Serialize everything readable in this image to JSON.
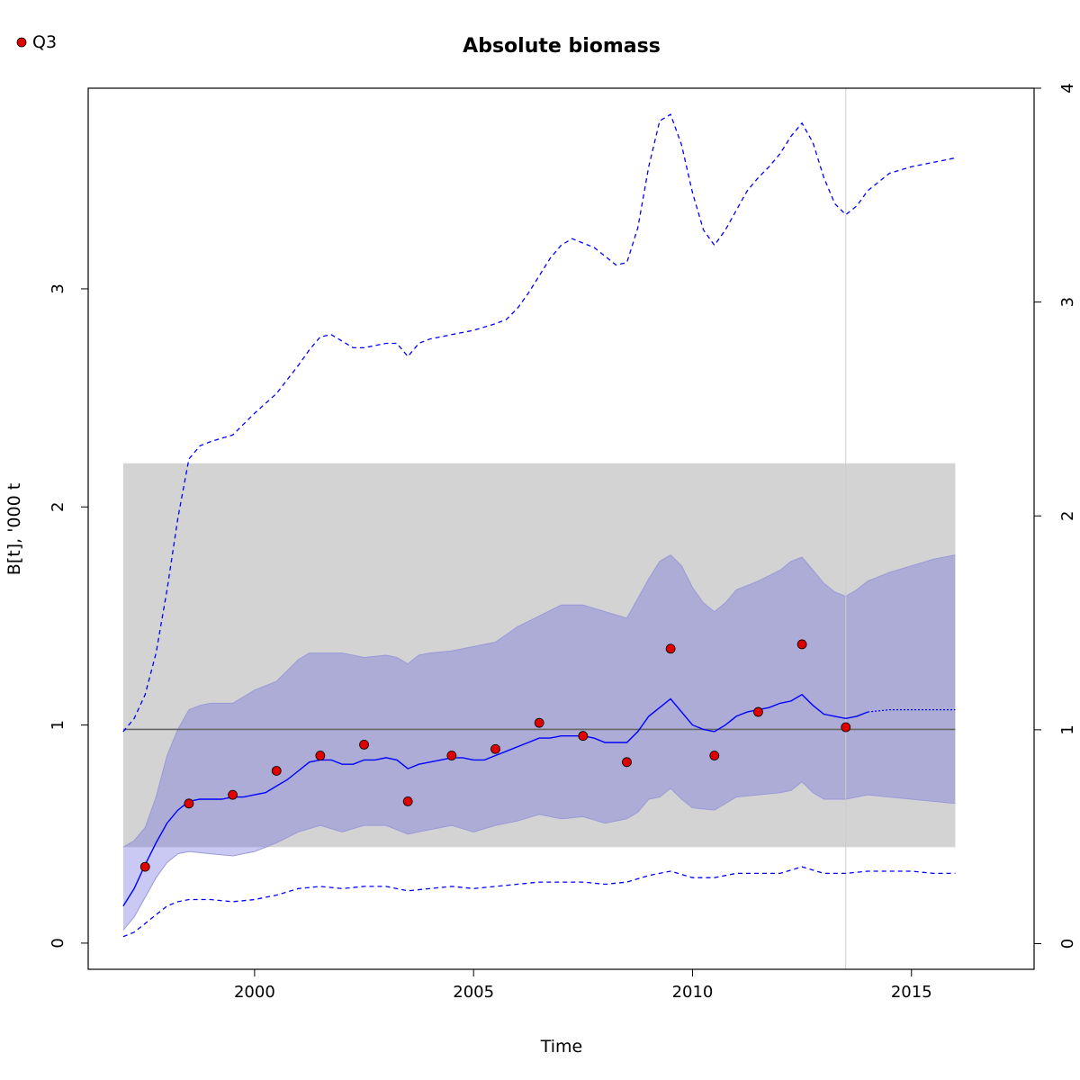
{
  "chart_data": {
    "type": "line",
    "title": "Absolute biomass",
    "xlabel": "Time",
    "ylabel": "B[t], '000 t",
    "legend": {
      "position": "top-left",
      "entries": [
        {
          "label": "Q3",
          "color": "#e00000",
          "marker": "point"
        }
      ]
    },
    "x_ticks": [
      2000,
      2005,
      2010,
      2015
    ],
    "y_left_ticks": [
      0,
      1,
      2,
      3
    ],
    "y_right_ticks": [
      0,
      1,
      2,
      3,
      4
    ],
    "xlim": [
      1996.2,
      2017.8
    ],
    "ylim": [
      -0.12,
      3.92
    ],
    "ylim_right": [
      -0.12,
      4.0
    ],
    "reference_line": {
      "value": 0.98,
      "color": "#666666"
    },
    "projection_start": 2013.5,
    "grey_band": {
      "x": [
        1997,
        2016
      ],
      "y": [
        0.44,
        2.2
      ],
      "color": "#d3d3d3"
    },
    "colors": {
      "estimate": "#0000ff",
      "ci_band": "rgba(100,100,220,0.35)",
      "grey_band": "#d3d3d3",
      "points": "#e00000",
      "reference": "#666666",
      "projection_marker": "#cccccc"
    },
    "series": [
      {
        "name": "Q3",
        "kind": "observed",
        "x": [
          1997.5,
          1998.5,
          1999.5,
          2000.5,
          2001.5,
          2002.5,
          2003.5,
          2004.5,
          2005.5,
          2006.5,
          2007.5,
          2008.5,
          2009.5,
          2010.5,
          2011.5,
          2012.5,
          2013.5
        ],
        "values": [
          0.35,
          0.64,
          0.68,
          0.79,
          0.86,
          0.91,
          0.65,
          0.86,
          0.89,
          1.01,
          0.95,
          0.83,
          1.35,
          0.86,
          1.06,
          1.37,
          0.99
        ]
      },
      {
        "kind": "estimate",
        "x": [
          1997.0,
          1997.25,
          1997.5,
          1997.75,
          1998.0,
          1998.25,
          1998.5,
          1998.75,
          1999.0,
          1999.25,
          1999.5,
          1999.75,
          2000.0,
          2000.25,
          2000.5,
          2000.75,
          2001.0,
          2001.25,
          2001.5,
          2001.75,
          2002.0,
          2002.25,
          2002.5,
          2002.75,
          2003.0,
          2003.25,
          2003.5,
          2003.75,
          2004.0,
          2004.25,
          2004.5,
          2004.75,
          2005.0,
          2005.25,
          2005.5,
          2005.75,
          2006.0,
          2006.25,
          2006.5,
          2006.75,
          2007.0,
          2007.25,
          2007.5,
          2007.75,
          2008.0,
          2008.25,
          2008.5,
          2008.75,
          2009.0,
          2009.25,
          2009.5,
          2009.75,
          2010.0,
          2010.25,
          2010.5,
          2010.75,
          2011.0,
          2011.25,
          2011.5,
          2011.75,
          2012.0,
          2012.25,
          2012.5,
          2012.75,
          2013.0,
          2013.25,
          2013.5,
          2013.75,
          2014.0
        ],
        "values": [
          0.17,
          0.25,
          0.36,
          0.46,
          0.55,
          0.61,
          0.65,
          0.66,
          0.66,
          0.66,
          0.67,
          0.67,
          0.68,
          0.69,
          0.72,
          0.75,
          0.79,
          0.83,
          0.84,
          0.84,
          0.82,
          0.82,
          0.84,
          0.84,
          0.85,
          0.84,
          0.8,
          0.82,
          0.83,
          0.84,
          0.85,
          0.85,
          0.84,
          0.84,
          0.86,
          0.88,
          0.9,
          0.92,
          0.94,
          0.94,
          0.95,
          0.95,
          0.95,
          0.94,
          0.92,
          0.92,
          0.92,
          0.97,
          1.04,
          1.08,
          1.12,
          1.06,
          1.0,
          0.98,
          0.97,
          1.0,
          1.04,
          1.06,
          1.07,
          1.08,
          1.1,
          1.11,
          1.14,
          1.09,
          1.05,
          1.04,
          1.03,
          1.04,
          1.06
        ]
      },
      {
        "kind": "projection",
        "x": [
          2014.0,
          2014.5,
          2015.0,
          2015.5,
          2016.0
        ],
        "values": [
          1.06,
          1.07,
          1.07,
          1.07,
          1.07
        ]
      },
      {
        "kind": "ci_upper",
        "x": [
          1997.0,
          1997.25,
          1997.5,
          1997.75,
          1998.0,
          1998.25,
          1998.5,
          1998.75,
          1999.0,
          1999.5,
          2000.0,
          2000.5,
          2001.0,
          2001.25,
          2001.5,
          2002.0,
          2002.5,
          2003.0,
          2003.25,
          2003.5,
          2003.75,
          2004.0,
          2004.5,
          2005.0,
          2005.5,
          2006.0,
          2006.5,
          2007.0,
          2007.5,
          2008.0,
          2008.5,
          2008.75,
          2009.0,
          2009.25,
          2009.5,
          2009.75,
          2010.0,
          2010.25,
          2010.5,
          2010.75,
          2011.0,
          2011.5,
          2012.0,
          2012.25,
          2012.5,
          2012.75,
          2013.0,
          2013.25,
          2013.5,
          2013.75,
          2014.0,
          2014.5,
          2015.0,
          2015.5,
          2016.0
        ],
        "values": [
          0.44,
          0.47,
          0.53,
          0.67,
          0.86,
          0.98,
          1.07,
          1.09,
          1.1,
          1.1,
          1.16,
          1.2,
          1.3,
          1.33,
          1.33,
          1.33,
          1.31,
          1.32,
          1.31,
          1.28,
          1.32,
          1.33,
          1.34,
          1.36,
          1.38,
          1.45,
          1.5,
          1.55,
          1.55,
          1.52,
          1.49,
          1.58,
          1.67,
          1.75,
          1.78,
          1.73,
          1.63,
          1.56,
          1.52,
          1.56,
          1.62,
          1.66,
          1.71,
          1.75,
          1.77,
          1.71,
          1.65,
          1.61,
          1.59,
          1.62,
          1.66,
          1.7,
          1.73,
          1.76,
          1.78
        ]
      },
      {
        "kind": "ci_lower",
        "x": [
          1997.0,
          1997.25,
          1997.5,
          1997.75,
          1998.0,
          1998.25,
          1998.5,
          1999.0,
          1999.5,
          2000.0,
          2000.5,
          2001.0,
          2001.5,
          2002.0,
          2002.5,
          2003.0,
          2003.25,
          2003.5,
          2003.75,
          2004.0,
          2004.5,
          2005.0,
          2005.5,
          2006.0,
          2006.5,
          2007.0,
          2007.5,
          2008.0,
          2008.5,
          2008.75,
          2009.0,
          2009.25,
          2009.5,
          2009.75,
          2010.0,
          2010.5,
          2011.0,
          2011.5,
          2012.0,
          2012.25,
          2012.5,
          2012.75,
          2013.0,
          2013.5,
          2014.0,
          2014.5,
          2015.0,
          2015.5,
          2016.0
        ],
        "values": [
          0.06,
          0.12,
          0.21,
          0.3,
          0.37,
          0.41,
          0.42,
          0.41,
          0.4,
          0.42,
          0.46,
          0.51,
          0.54,
          0.51,
          0.54,
          0.54,
          0.52,
          0.5,
          0.51,
          0.52,
          0.54,
          0.51,
          0.54,
          0.56,
          0.59,
          0.57,
          0.58,
          0.55,
          0.57,
          0.6,
          0.66,
          0.67,
          0.71,
          0.66,
          0.62,
          0.61,
          0.67,
          0.68,
          0.69,
          0.7,
          0.74,
          0.69,
          0.66,
          0.66,
          0.68,
          0.67,
          0.66,
          0.65,
          0.64
        ]
      },
      {
        "kind": "upper_dashed",
        "x": [
          1997.0,
          1997.25,
          1997.5,
          1997.75,
          1998.0,
          1998.25,
          1998.5,
          1998.75,
          1999.0,
          1999.5,
          2000.0,
          2000.5,
          2001.0,
          2001.25,
          2001.5,
          2001.75,
          2002.0,
          2002.25,
          2002.5,
          2003.0,
          2003.25,
          2003.5,
          2003.75,
          2004.0,
          2004.5,
          2005.0,
          2005.5,
          2005.75,
          2006.0,
          2006.25,
          2006.5,
          2006.75,
          2007.0,
          2007.25,
          2007.5,
          2007.75,
          2008.0,
          2008.25,
          2008.5,
          2008.75,
          2009.0,
          2009.25,
          2009.5,
          2009.75,
          2010.0,
          2010.25,
          2010.5,
          2010.75,
          2011.0,
          2011.25,
          2011.5,
          2011.75,
          2012.0,
          2012.25,
          2012.5,
          2012.75,
          2013.0,
          2013.25,
          2013.5,
          2013.75,
          2014.0,
          2014.5,
          2015.0,
          2015.5,
          2016.0
        ],
        "values": [
          0.97,
          1.03,
          1.14,
          1.33,
          1.62,
          1.95,
          2.22,
          2.28,
          2.3,
          2.33,
          2.43,
          2.52,
          2.65,
          2.72,
          2.78,
          2.79,
          2.76,
          2.73,
          2.73,
          2.75,
          2.75,
          2.69,
          2.75,
          2.77,
          2.79,
          2.81,
          2.84,
          2.86,
          2.91,
          2.98,
          3.06,
          3.14,
          3.2,
          3.23,
          3.21,
          3.19,
          3.15,
          3.11,
          3.12,
          3.28,
          3.56,
          3.77,
          3.8,
          3.66,
          3.44,
          3.27,
          3.2,
          3.27,
          3.36,
          3.45,
          3.51,
          3.56,
          3.62,
          3.7,
          3.76,
          3.67,
          3.51,
          3.39,
          3.34,
          3.38,
          3.45,
          3.53,
          3.56,
          3.58,
          3.6
        ]
      },
      {
        "kind": "lower_dashed",
        "x": [
          1997.0,
          1997.25,
          1997.5,
          1997.75,
          1998.0,
          1998.25,
          1998.5,
          1999.0,
          1999.5,
          2000.0,
          2000.5,
          2001.0,
          2001.5,
          2002.0,
          2002.5,
          2003.0,
          2003.5,
          2004.0,
          2004.5,
          2005.0,
          2005.5,
          2006.0,
          2006.5,
          2007.0,
          2007.5,
          2008.0,
          2008.5,
          2009.0,
          2009.5,
          2010.0,
          2010.5,
          2011.0,
          2011.5,
          2012.0,
          2012.5,
          2013.0,
          2013.5,
          2014.0,
          2014.5,
          2015.0,
          2015.5,
          2016.0
        ],
        "values": [
          0.03,
          0.05,
          0.09,
          0.13,
          0.17,
          0.19,
          0.2,
          0.2,
          0.19,
          0.2,
          0.22,
          0.25,
          0.26,
          0.25,
          0.26,
          0.26,
          0.24,
          0.25,
          0.26,
          0.25,
          0.26,
          0.27,
          0.28,
          0.28,
          0.28,
          0.27,
          0.28,
          0.31,
          0.33,
          0.3,
          0.3,
          0.32,
          0.32,
          0.32,
          0.35,
          0.32,
          0.32,
          0.33,
          0.33,
          0.33,
          0.32,
          0.32
        ]
      }
    ]
  }
}
